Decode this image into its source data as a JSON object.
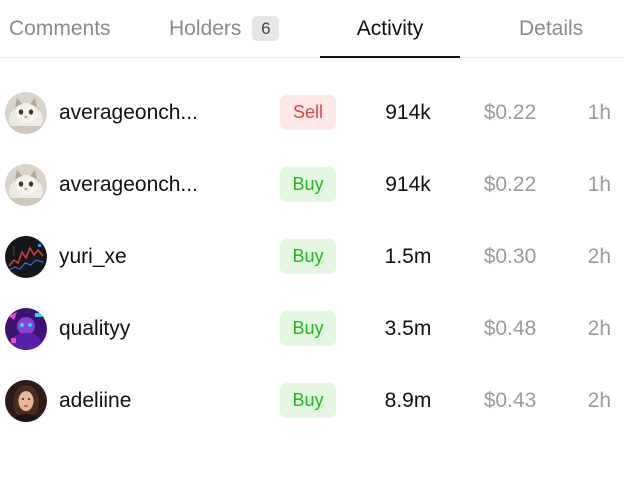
{
  "tabs": {
    "comments": "Comments",
    "holders": "Holders",
    "holders_count": "6",
    "activity": "Activity",
    "details": "Details"
  },
  "activity": [
    {
      "user": "averageonch...",
      "avatar": "cat-avatar",
      "type": "Sell",
      "amount": "914k",
      "price": "$0.22",
      "time": "1h"
    },
    {
      "user": "averageonch...",
      "avatar": "cat-avatar",
      "type": "Buy",
      "amount": "914k",
      "price": "$0.22",
      "time": "1h"
    },
    {
      "user": "yuri_xe",
      "avatar": "chart-avatar",
      "type": "Buy",
      "amount": "1.5m",
      "price": "$0.30",
      "time": "2h"
    },
    {
      "user": "qualityy",
      "avatar": "neon-avatar",
      "type": "Buy",
      "amount": "3.5m",
      "price": "$0.48",
      "time": "2h"
    },
    {
      "user": "adeliine",
      "avatar": "portrait-avatar",
      "type": "Buy",
      "amount": "8.9m",
      "price": "$0.43",
      "time": "2h"
    }
  ],
  "colors": {
    "sell_text": "#e04545",
    "sell_bg": "#fde8e8",
    "buy_text": "#1fb81f",
    "buy_bg": "#e4f8e1",
    "active_tab": "#111111",
    "muted_text": "#9a9a9a"
  }
}
